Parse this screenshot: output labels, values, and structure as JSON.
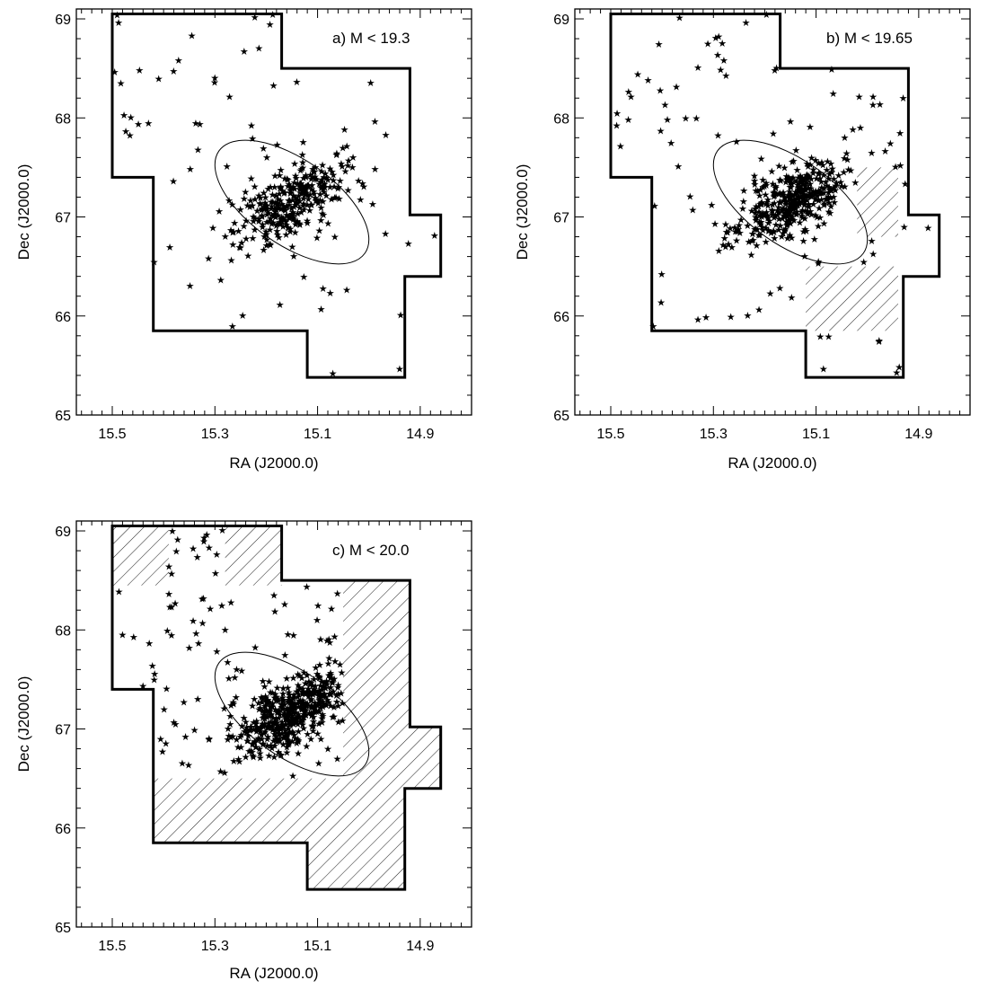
{
  "chart_data": [
    {
      "type": "scatter",
      "title": "a) M < 19.3",
      "xlabel": "RA (J2000.0)",
      "ylabel": "Dec (J2000.0)",
      "xlim": [
        15.57,
        14.8
      ],
      "ylim": [
        65,
        69.1
      ],
      "x_ticks": [
        "15.5",
        "15.3",
        "15.1",
        "14.9"
      ],
      "y_ticks": [
        "65",
        "66",
        "67",
        "68",
        "69"
      ],
      "x_tick_values": [
        15.5,
        15.3,
        15.1,
        14.9
      ],
      "y_tick_values": [
        65,
        66,
        67,
        68,
        69
      ],
      "footprint": [
        [
          15.5,
          69.05
        ],
        [
          15.17,
          69.05
        ],
        [
          15.17,
          68.5
        ],
        [
          14.92,
          68.5
        ],
        [
          14.92,
          67.02
        ],
        [
          14.86,
          67.02
        ],
        [
          14.86,
          66.4
        ],
        [
          14.93,
          66.4
        ],
        [
          14.93,
          65.38
        ],
        [
          15.12,
          65.38
        ],
        [
          15.12,
          65.85
        ],
        [
          15.42,
          65.85
        ],
        [
          15.42,
          67.4
        ],
        [
          15.5,
          67.4
        ]
      ],
      "ellipse": {
        "ra": 15.15,
        "dec": 67.15,
        "semi_major": 0.9,
        "semi_minor": 0.43,
        "pa_deg": -35
      },
      "hatched_regions": [],
      "points_seed": 11,
      "cluster_points": 300,
      "field_points": 85
    },
    {
      "type": "scatter",
      "title": "b) M < 19.65",
      "xlabel": "RA (J2000.0)",
      "ylabel": "Dec (J2000.0)",
      "xlim": [
        15.57,
        14.8
      ],
      "ylim": [
        65,
        69.1
      ],
      "x_ticks": [
        "15.5",
        "15.3",
        "15.1",
        "14.9"
      ],
      "y_ticks": [
        "65",
        "66",
        "67",
        "68",
        "69"
      ],
      "x_tick_values": [
        15.5,
        15.3,
        15.1,
        14.9
      ],
      "y_tick_values": [
        65,
        66,
        67,
        68,
        69
      ],
      "footprint": [
        [
          15.5,
          69.05
        ],
        [
          15.17,
          69.05
        ],
        [
          15.17,
          68.5
        ],
        [
          14.92,
          68.5
        ],
        [
          14.92,
          67.02
        ],
        [
          14.86,
          67.02
        ],
        [
          14.86,
          66.4
        ],
        [
          14.93,
          66.4
        ],
        [
          14.93,
          65.38
        ],
        [
          15.12,
          65.38
        ],
        [
          15.12,
          65.85
        ],
        [
          15.42,
          65.85
        ],
        [
          15.42,
          67.4
        ],
        [
          15.5,
          67.4
        ]
      ],
      "ellipse": {
        "ra": 15.15,
        "dec": 67.15,
        "semi_major": 0.9,
        "semi_minor": 0.43,
        "pa_deg": -35
      },
      "hatched_regions": [
        [
          [
            15.02,
            67.5
          ],
          [
            14.94,
            67.5
          ],
          [
            14.94,
            66.8
          ],
          [
            15.02,
            66.8
          ]
        ],
        [
          [
            15.12,
            66.5
          ],
          [
            14.94,
            66.5
          ],
          [
            14.94,
            65.85
          ],
          [
            15.12,
            65.85
          ]
        ]
      ],
      "points_seed": 23,
      "cluster_points": 370,
      "field_points": 105
    },
    {
      "type": "scatter",
      "title": "c) M < 20.0",
      "xlabel": "RA (J2000.0)",
      "ylabel": "Dec (J2000.0)",
      "xlim": [
        15.57,
        14.8
      ],
      "ylim": [
        65,
        69.1
      ],
      "x_ticks": [
        "15.5",
        "15.3",
        "15.1",
        "14.9"
      ],
      "y_ticks": [
        "65",
        "66",
        "67",
        "68",
        "69"
      ],
      "x_tick_values": [
        15.5,
        15.3,
        15.1,
        14.9
      ],
      "y_tick_values": [
        65,
        66,
        67,
        68,
        69
      ],
      "footprint": [
        [
          15.5,
          69.05
        ],
        [
          15.17,
          69.05
        ],
        [
          15.17,
          68.5
        ],
        [
          14.92,
          68.5
        ],
        [
          14.92,
          67.02
        ],
        [
          14.86,
          67.02
        ],
        [
          14.86,
          66.4
        ],
        [
          14.93,
          66.4
        ],
        [
          14.93,
          65.38
        ],
        [
          15.12,
          65.38
        ],
        [
          15.12,
          65.85
        ],
        [
          15.42,
          65.85
        ],
        [
          15.42,
          67.4
        ],
        [
          15.5,
          67.4
        ]
      ],
      "ellipse": {
        "ra": 15.15,
        "dec": 67.15,
        "semi_major": 0.9,
        "semi_minor": 0.43,
        "pa_deg": -35
      },
      "hatched_regions": [
        [
          [
            15.5,
            69.05
          ],
          [
            15.39,
            69.05
          ],
          [
            15.39,
            68.45
          ],
          [
            15.5,
            68.45
          ]
        ],
        [
          [
            15.28,
            69.05
          ],
          [
            15.17,
            69.05
          ],
          [
            15.17,
            68.45
          ],
          [
            15.28,
            68.45
          ]
        ],
        [
          [
            15.05,
            68.5
          ],
          [
            14.92,
            68.5
          ],
          [
            14.92,
            67.02
          ],
          [
            14.86,
            67.02
          ],
          [
            14.86,
            66.4
          ],
          [
            14.93,
            66.4
          ],
          [
            14.93,
            65.38
          ],
          [
            15.12,
            65.38
          ],
          [
            15.12,
            65.85
          ],
          [
            15.42,
            65.85
          ],
          [
            15.42,
            66.5
          ],
          [
            15.05,
            66.5
          ]
        ]
      ],
      "points_seed": 37,
      "cluster_points": 430,
      "field_points": 120
    }
  ]
}
